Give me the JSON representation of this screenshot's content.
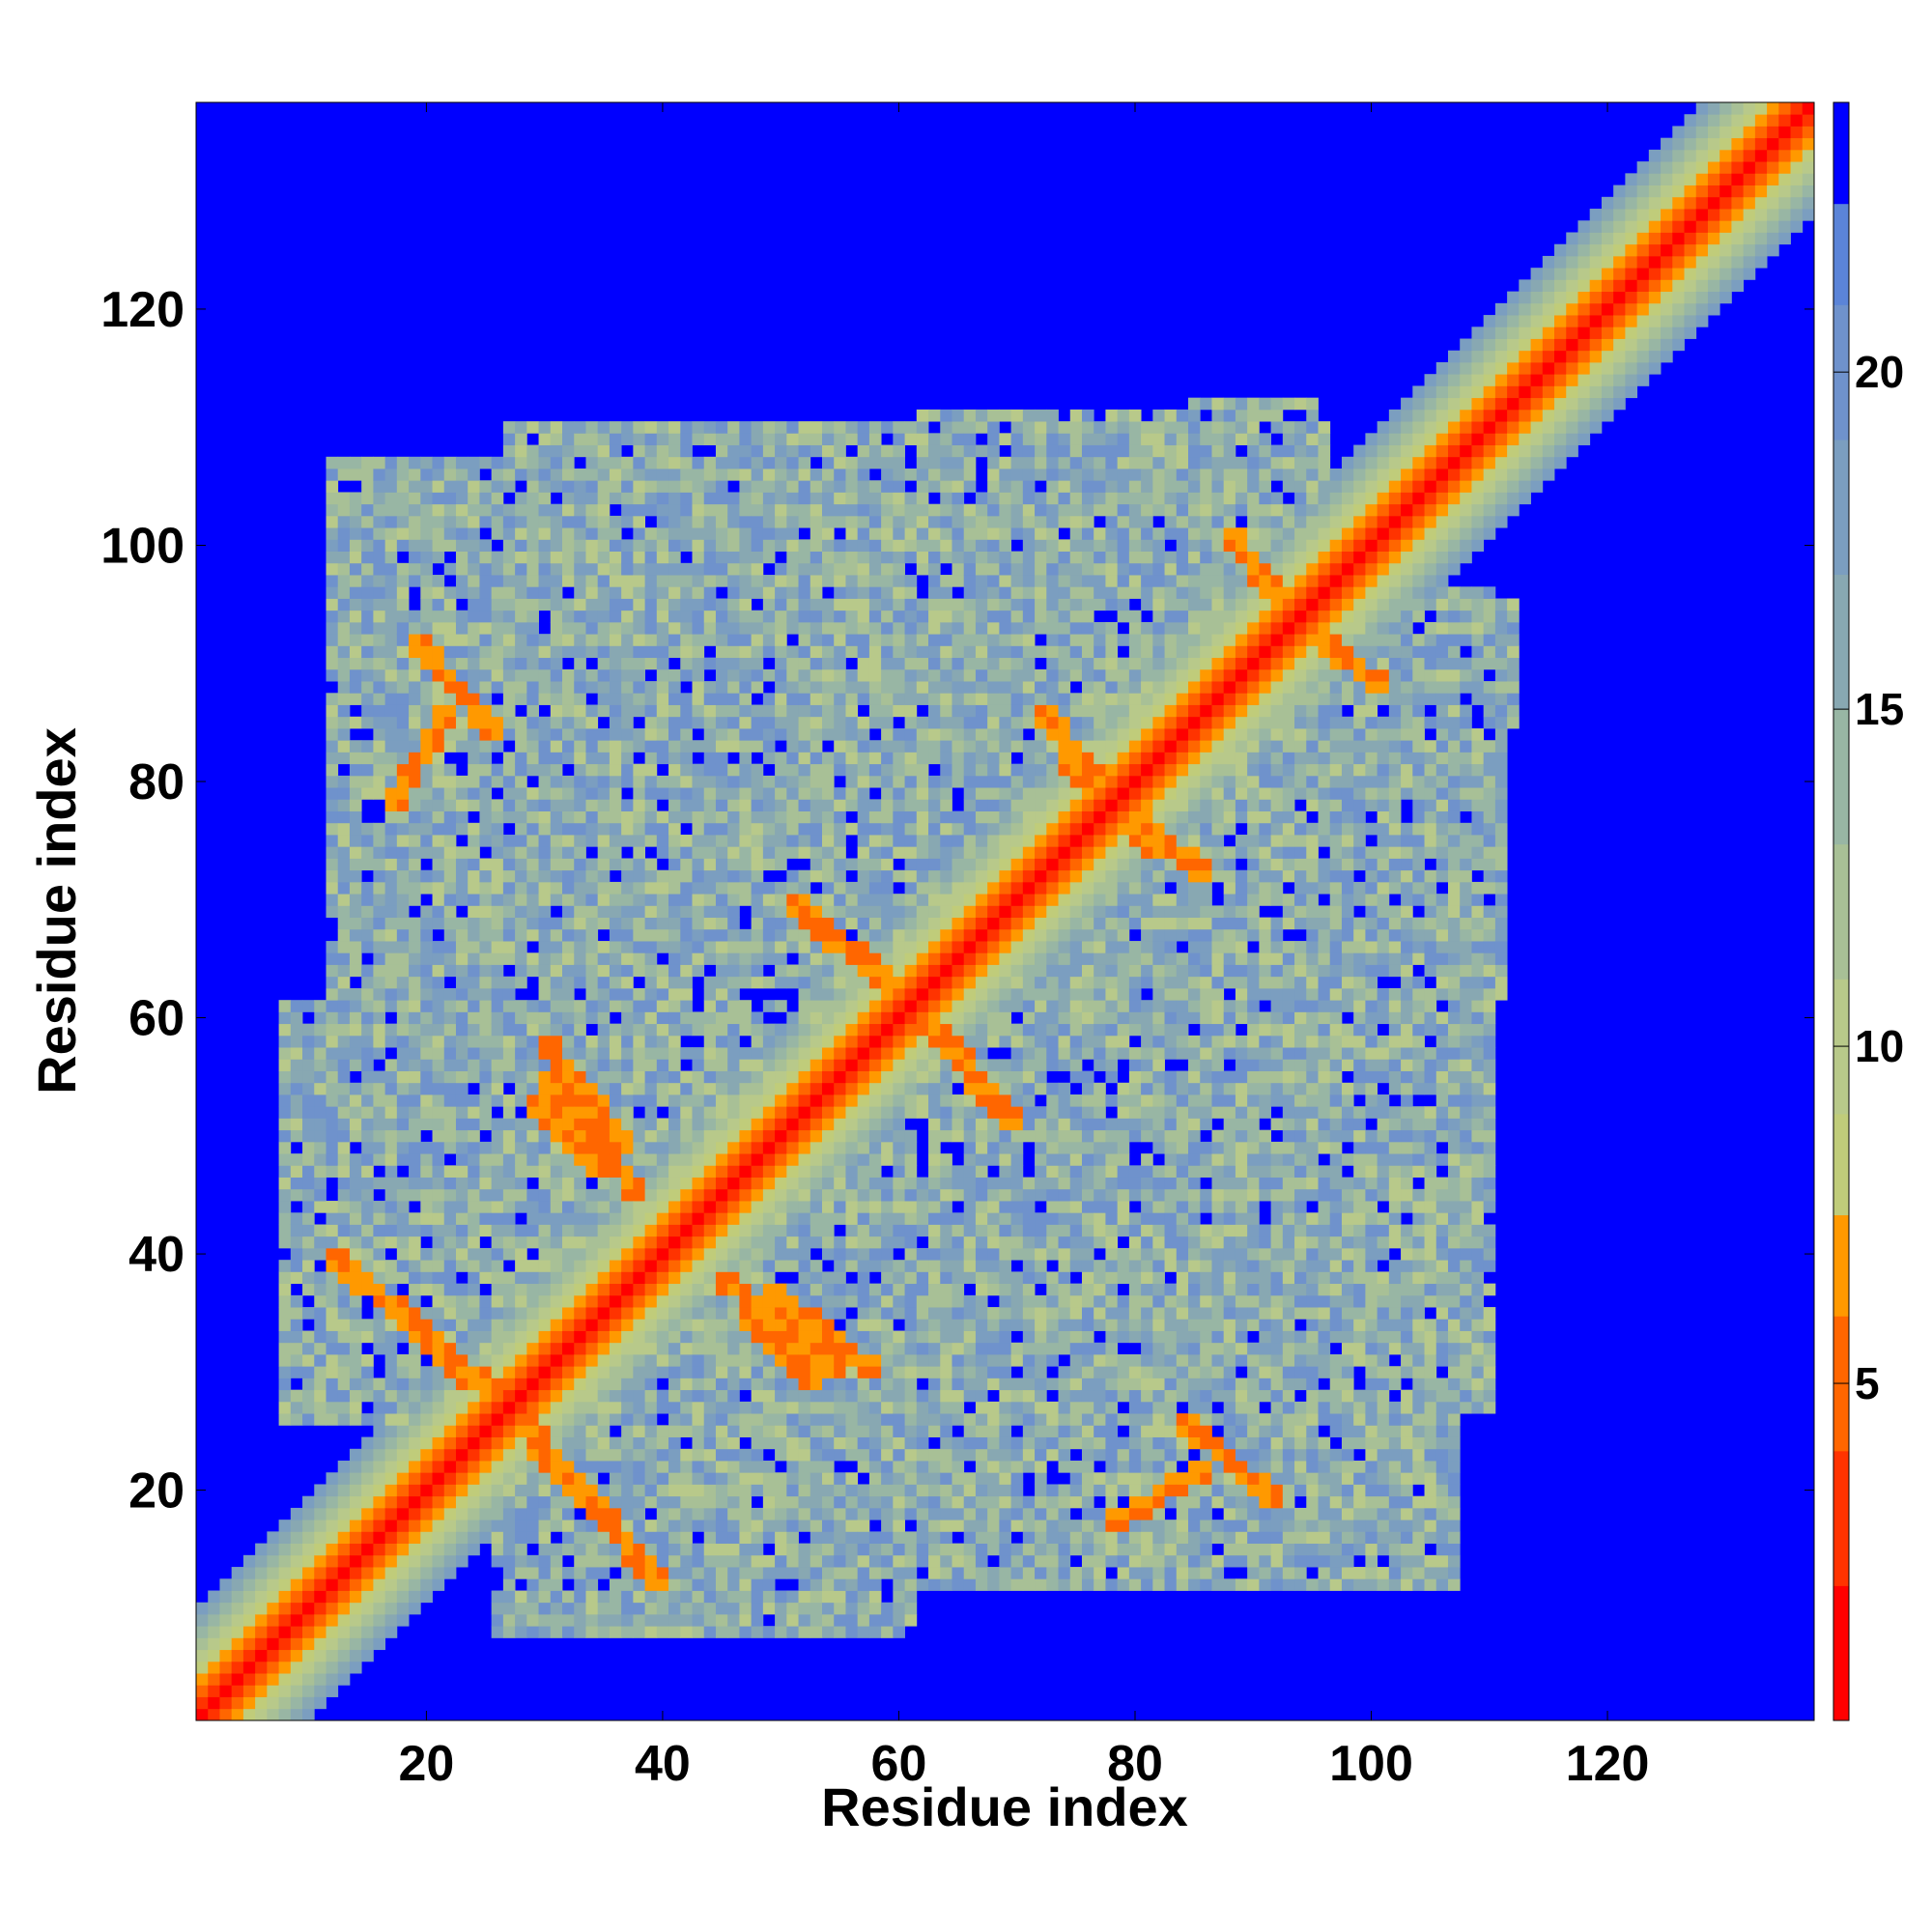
{
  "chart_data": {
    "type": "heatmap",
    "title": "",
    "xlabel": "Residue index",
    "ylabel": "Residue index",
    "n_residues": 137,
    "xlim": [
      1,
      137
    ],
    "ylim": [
      1,
      137
    ],
    "x_ticks": [
      20,
      40,
      60,
      80,
      100,
      120
    ],
    "y_ticks": [
      20,
      40,
      60,
      80,
      100,
      120
    ],
    "colorbar": {
      "range": [
        0,
        24
      ],
      "ticks": [
        5,
        10,
        15,
        20
      ],
      "position": "right",
      "levels": [
        {
          "from": 0,
          "to": 2,
          "color": "#ff0000"
        },
        {
          "from": 2,
          "to": 4,
          "color": "#ff3300"
        },
        {
          "from": 4,
          "to": 6,
          "color": "#ff6600"
        },
        {
          "from": 6,
          "to": 7.5,
          "color": "#ff9900"
        },
        {
          "from": 7.5,
          "to": 9,
          "color": "#c0cc7a"
        },
        {
          "from": 9,
          "to": 11,
          "color": "#b8c98a"
        },
        {
          "from": 11,
          "to": 13,
          "color": "#a8c096"
        },
        {
          "from": 13,
          "to": 15,
          "color": "#98b6a4"
        },
        {
          "from": 15,
          "to": 17,
          "color": "#88a8b2"
        },
        {
          "from": 17,
          "to": 19,
          "color": "#7b9ec0"
        },
        {
          "from": 19,
          "to": 21,
          "color": "#6f92cc"
        },
        {
          "from": 21,
          "to": 22.5,
          "color": "#5b84d8"
        },
        {
          "from": 22.5,
          "to": 24,
          "color": "#0000ff"
        }
      ]
    },
    "background_color": "#0000ff",
    "diagonal_band_width": 9,
    "contact_regions": [
      {
        "x": [
          12,
          28
        ],
        "y": [
          61,
          107
        ]
      },
      {
        "x": [
          29,
          47
        ],
        "y": [
          63,
          104
        ]
      },
      {
        "x": [
          47,
          60
        ],
        "y": [
          63,
          99
        ]
      },
      {
        "x": [
          62,
          86
        ],
        "y": [
          57,
          111
        ]
      },
      {
        "x": [
          85,
          95
        ],
        "y": [
          85,
          112
        ]
      },
      {
        "x": [
          86,
          110
        ],
        "y": [
          83,
          96
        ]
      },
      {
        "x": [
          88,
          107
        ],
        "y": [
          60,
          82
        ]
      },
      {
        "x": [
          8,
          50
        ],
        "y": [
          26,
          61
        ]
      },
      {
        "x": [
          26,
          58
        ],
        "y": [
          8,
          31
        ]
      },
      {
        "x": [
          40,
          58
        ],
        "y": [
          24,
          42
        ]
      },
      {
        "x": [
          52,
          70
        ],
        "y": [
          52,
          72
        ]
      },
      {
        "x": [
          64,
          100
        ],
        "y": [
          50,
          62
        ]
      },
      {
        "x": [
          60,
          100
        ],
        "y": [
          30,
          46
        ]
      },
      {
        "x": [
          62,
          106
        ],
        "y": [
          13,
          26
        ]
      },
      {
        "x": [
          90,
          110
        ],
        "y": [
          27,
          62
        ]
      }
    ],
    "strong_contacts": [
      [
        [
          29,
          53
        ],
        [
          35,
          47
        ]
      ],
      [
        [
          30,
          55
        ],
        [
          38,
          45
        ]
      ],
      [
        [
          49,
          37
        ],
        [
          58,
          30
        ]
      ],
      [
        [
          53,
          68
        ],
        [
          60,
          62
        ]
      ],
      [
        [
          64,
          58
        ],
        [
          70,
          51
        ]
      ],
      [
        [
          12,
          40
        ],
        [
          26,
          28
        ]
      ],
      [
        [
          29,
          24
        ],
        [
          40,
          12
        ]
      ],
      [
        [
          17,
          78
        ],
        [
          22,
          86
        ]
      ],
      [
        [
          88,
          101
        ],
        [
          94,
          93
        ]
      ],
      [
        [
          84,
          26
        ],
        [
          92,
          19
        ]
      ],
      [
        [
          74,
          82
        ],
        [
          86,
          72
        ]
      ]
    ]
  }
}
